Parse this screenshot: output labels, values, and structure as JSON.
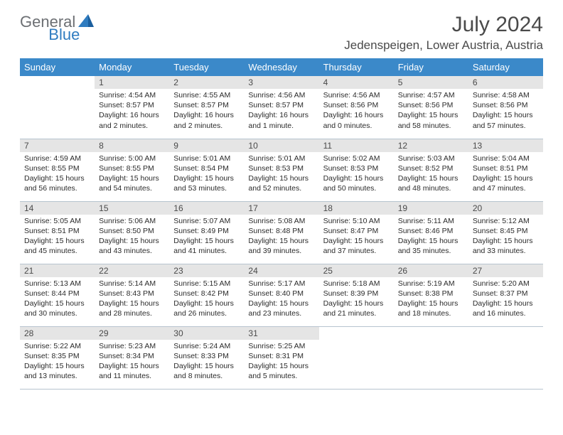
{
  "logo": {
    "general": "General",
    "blue": "Blue"
  },
  "title": "July 2024",
  "location": "Jedenspeigen, Lower Austria, Austria",
  "colors": {
    "header_bg": "#3b89c9",
    "header_text": "#ffffff",
    "daynum_bg": "#e5e5e5",
    "border": "#b7c4cf",
    "text": "#2b2b2b",
    "logo_general": "#6c6f73",
    "logo_blue": "#2f7cc0"
  },
  "layout": {
    "rows": 5,
    "cols": 7,
    "first_weekday_offset": 1
  },
  "weekdays": [
    "Sunday",
    "Monday",
    "Tuesday",
    "Wednesday",
    "Thursday",
    "Friday",
    "Saturday"
  ],
  "days": [
    {
      "n": 1,
      "sunrise": "4:54 AM",
      "sunset": "8:57 PM",
      "daylight": "16 hours and 2 minutes."
    },
    {
      "n": 2,
      "sunrise": "4:55 AM",
      "sunset": "8:57 PM",
      "daylight": "16 hours and 2 minutes."
    },
    {
      "n": 3,
      "sunrise": "4:56 AM",
      "sunset": "8:57 PM",
      "daylight": "16 hours and 1 minute."
    },
    {
      "n": 4,
      "sunrise": "4:56 AM",
      "sunset": "8:56 PM",
      "daylight": "16 hours and 0 minutes."
    },
    {
      "n": 5,
      "sunrise": "4:57 AM",
      "sunset": "8:56 PM",
      "daylight": "15 hours and 58 minutes."
    },
    {
      "n": 6,
      "sunrise": "4:58 AM",
      "sunset": "8:56 PM",
      "daylight": "15 hours and 57 minutes."
    },
    {
      "n": 7,
      "sunrise": "4:59 AM",
      "sunset": "8:55 PM",
      "daylight": "15 hours and 56 minutes."
    },
    {
      "n": 8,
      "sunrise": "5:00 AM",
      "sunset": "8:55 PM",
      "daylight": "15 hours and 54 minutes."
    },
    {
      "n": 9,
      "sunrise": "5:01 AM",
      "sunset": "8:54 PM",
      "daylight": "15 hours and 53 minutes."
    },
    {
      "n": 10,
      "sunrise": "5:01 AM",
      "sunset": "8:53 PM",
      "daylight": "15 hours and 52 minutes."
    },
    {
      "n": 11,
      "sunrise": "5:02 AM",
      "sunset": "8:53 PM",
      "daylight": "15 hours and 50 minutes."
    },
    {
      "n": 12,
      "sunrise": "5:03 AM",
      "sunset": "8:52 PM",
      "daylight": "15 hours and 48 minutes."
    },
    {
      "n": 13,
      "sunrise": "5:04 AM",
      "sunset": "8:51 PM",
      "daylight": "15 hours and 47 minutes."
    },
    {
      "n": 14,
      "sunrise": "5:05 AM",
      "sunset": "8:51 PM",
      "daylight": "15 hours and 45 minutes."
    },
    {
      "n": 15,
      "sunrise": "5:06 AM",
      "sunset": "8:50 PM",
      "daylight": "15 hours and 43 minutes."
    },
    {
      "n": 16,
      "sunrise": "5:07 AM",
      "sunset": "8:49 PM",
      "daylight": "15 hours and 41 minutes."
    },
    {
      "n": 17,
      "sunrise": "5:08 AM",
      "sunset": "8:48 PM",
      "daylight": "15 hours and 39 minutes."
    },
    {
      "n": 18,
      "sunrise": "5:10 AM",
      "sunset": "8:47 PM",
      "daylight": "15 hours and 37 minutes."
    },
    {
      "n": 19,
      "sunrise": "5:11 AM",
      "sunset": "8:46 PM",
      "daylight": "15 hours and 35 minutes."
    },
    {
      "n": 20,
      "sunrise": "5:12 AM",
      "sunset": "8:45 PM",
      "daylight": "15 hours and 33 minutes."
    },
    {
      "n": 21,
      "sunrise": "5:13 AM",
      "sunset": "8:44 PM",
      "daylight": "15 hours and 30 minutes."
    },
    {
      "n": 22,
      "sunrise": "5:14 AM",
      "sunset": "8:43 PM",
      "daylight": "15 hours and 28 minutes."
    },
    {
      "n": 23,
      "sunrise": "5:15 AM",
      "sunset": "8:42 PM",
      "daylight": "15 hours and 26 minutes."
    },
    {
      "n": 24,
      "sunrise": "5:17 AM",
      "sunset": "8:40 PM",
      "daylight": "15 hours and 23 minutes."
    },
    {
      "n": 25,
      "sunrise": "5:18 AM",
      "sunset": "8:39 PM",
      "daylight": "15 hours and 21 minutes."
    },
    {
      "n": 26,
      "sunrise": "5:19 AM",
      "sunset": "8:38 PM",
      "daylight": "15 hours and 18 minutes."
    },
    {
      "n": 27,
      "sunrise": "5:20 AM",
      "sunset": "8:37 PM",
      "daylight": "15 hours and 16 minutes."
    },
    {
      "n": 28,
      "sunrise": "5:22 AM",
      "sunset": "8:35 PM",
      "daylight": "15 hours and 13 minutes."
    },
    {
      "n": 29,
      "sunrise": "5:23 AM",
      "sunset": "8:34 PM",
      "daylight": "15 hours and 11 minutes."
    },
    {
      "n": 30,
      "sunrise": "5:24 AM",
      "sunset": "8:33 PM",
      "daylight": "15 hours and 8 minutes."
    },
    {
      "n": 31,
      "sunrise": "5:25 AM",
      "sunset": "8:31 PM",
      "daylight": "15 hours and 5 minutes."
    }
  ],
  "labels": {
    "sunrise": "Sunrise:",
    "sunset": "Sunset:",
    "daylight": "Daylight:"
  }
}
